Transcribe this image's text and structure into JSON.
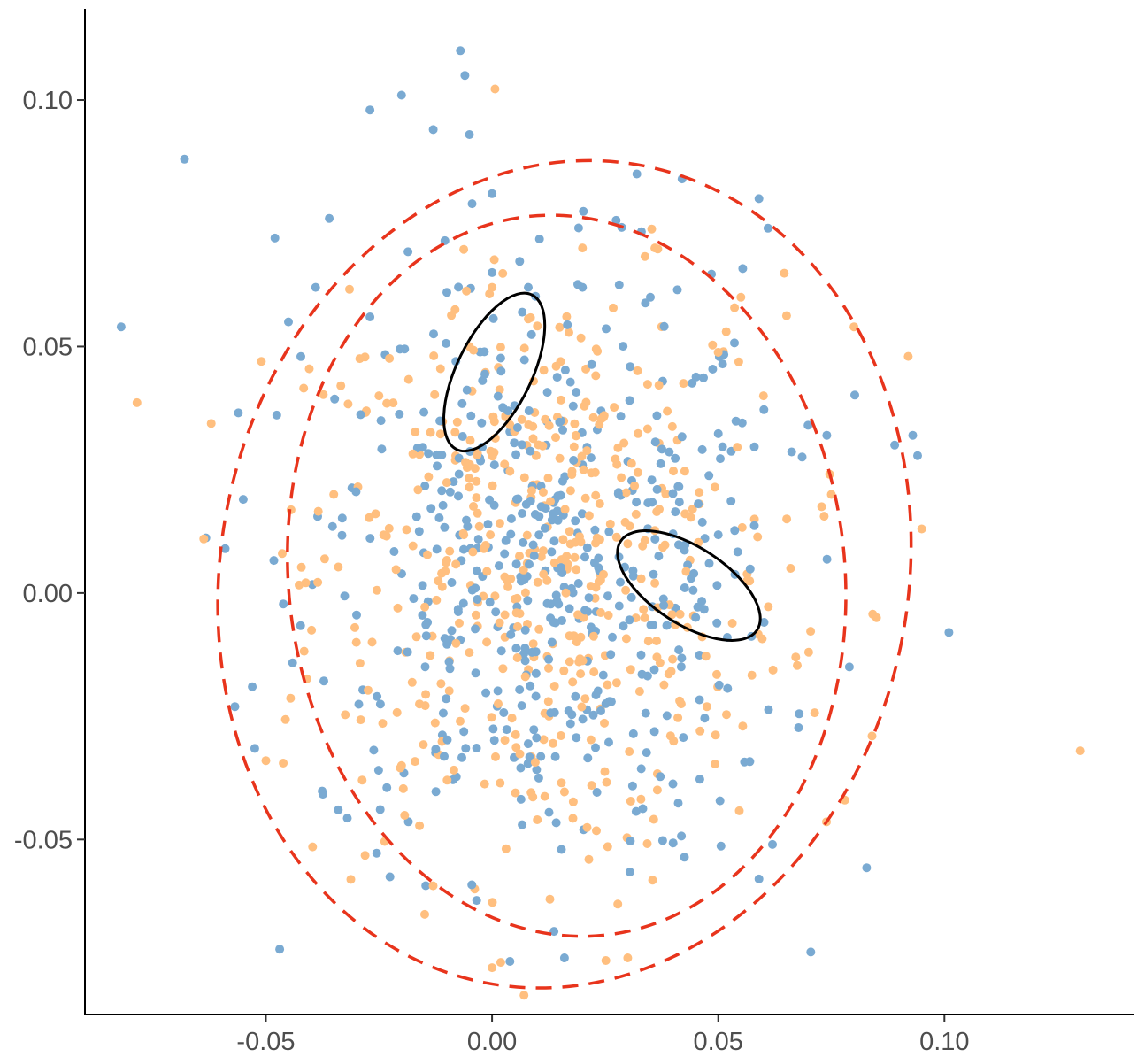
{
  "chart_data": {
    "type": "scatter",
    "title": "",
    "xlabel": "",
    "ylabel": "",
    "xlim": [
      -0.09,
      0.142
    ],
    "ylim": [
      -0.0855,
      0.1185
    ],
    "x_ticks": [
      -0.05,
      0.0,
      0.05,
      0.1
    ],
    "x_tick_labels": [
      "-0.05",
      "0.00",
      "0.05",
      "0.10"
    ],
    "y_ticks": [
      -0.05,
      0.0,
      0.05,
      0.1
    ],
    "y_tick_labels": [
      "-0.05",
      "0.00",
      "0.05",
      "0.10"
    ],
    "grid": false,
    "legend": "none",
    "colors": {
      "series_blue": "#7aaad2",
      "series_orange": "#ffbf7f",
      "dashed_ellipse": "#e8341c",
      "solid_ellipse": "#000000"
    },
    "generated_cloud": {
      "center": [
        0.012,
        0.004
      ],
      "sd": [
        0.026,
        0.03
      ],
      "count_per_series": 490
    },
    "series": [
      {
        "color": "#7aaad2",
        "points": [
          [
            -0.007,
            0.11
          ],
          [
            -0.006,
            0.105
          ],
          [
            -0.02,
            0.101
          ],
          [
            -0.027,
            0.098
          ],
          [
            -0.013,
            0.094
          ],
          [
            -0.005,
            0.093
          ],
          [
            -0.068,
            0.088
          ],
          [
            -0.082,
            0.054
          ],
          [
            0.032,
            0.085
          ],
          [
            0.042,
            0.084
          ],
          [
            0.059,
            0.08
          ],
          [
            0.061,
            0.074
          ],
          [
            0.0,
            0.081
          ],
          [
            -0.036,
            0.076
          ],
          [
            -0.048,
            0.072
          ],
          [
            -0.039,
            0.062
          ],
          [
            -0.045,
            0.055
          ],
          [
            0.093,
            0.032
          ],
          [
            0.101,
            -0.008
          ],
          [
            -0.059,
            0.009
          ],
          [
            -0.055,
            0.019
          ],
          [
            -0.053,
            -0.019
          ],
          [
            -0.034,
            -0.044
          ],
          [
            0.016,
            -0.074
          ],
          [
            0.059,
            -0.058
          ],
          [
            0.062,
            -0.051
          ],
          [
            0.079,
            -0.015
          ],
          [
            0.089,
            0.03
          ],
          [
            0.074,
            0.032
          ],
          [
            -0.027,
            0.056
          ],
          [
            -0.01,
            0.061
          ],
          [
            0.0,
            0.065
          ],
          [
            0.008,
            0.062
          ],
          [
            0.02,
            0.062
          ],
          [
            0.035,
            0.06
          ],
          [
            -0.008,
            0.047
          ],
          [
            0.002,
            0.045
          ],
          [
            0.005,
            0.038
          ],
          [
            0.012,
            0.03
          ],
          [
            0.02,
            0.026
          ],
          [
            0.04,
            0.012
          ],
          [
            0.048,
            0.006
          ],
          [
            0.052,
            -0.009
          ],
          [
            0.044,
            0.003
          ]
        ]
      },
      {
        "color": "#ffbf7f",
        "points": [
          [
            0.13,
            -0.032
          ],
          [
            0.092,
            0.048
          ],
          [
            0.095,
            0.013
          ],
          [
            0.078,
            -0.042
          ],
          [
            0.0,
            -0.076
          ],
          [
            0.03,
            -0.074
          ],
          [
            -0.051,
            0.047
          ],
          [
            -0.05,
            -0.034
          ],
          [
            0.036,
            0.07
          ],
          [
            0.055,
            0.06
          ],
          [
            0.08,
            0.054
          ],
          [
            0.084,
            -0.029
          ],
          [
            -0.005,
            0.05
          ],
          [
            0.003,
            0.036
          ],
          [
            0.01,
            0.022
          ],
          [
            0.03,
            0.01
          ],
          [
            0.036,
            0.002
          ],
          [
            0.058,
            0.015
          ],
          [
            0.066,
            0.005
          ],
          [
            0.07,
            -0.012
          ],
          [
            0.046,
            -0.028
          ],
          [
            0.022,
            -0.039
          ],
          [
            0.01,
            -0.046
          ],
          [
            -0.02,
            -0.035
          ],
          [
            -0.03,
            -0.01
          ],
          [
            -0.035,
            0.02
          ],
          [
            -0.025,
            0.04
          ],
          [
            0.0,
            0.062
          ],
          [
            0.02,
            0.07
          ],
          [
            0.06,
            0.04
          ],
          [
            0.075,
            0.02
          ],
          [
            0.085,
            -0.005
          ]
        ]
      }
    ],
    "ellipses": [
      {
        "style": "dashed",
        "color": "#e8341c",
        "cx": 0.0165,
        "cy": 0.0035,
        "rx": 0.0615,
        "ry": 0.0733,
        "angle_deg": 6
      },
      {
        "style": "dashed",
        "color": "#e8341c",
        "cx": 0.016,
        "cy": 0.0038,
        "rx": 0.076,
        "ry": 0.0844,
        "angle_deg": -11
      },
      {
        "style": "solid",
        "color": "#000000",
        "cx": 0.0005,
        "cy": 0.0448,
        "rx": 0.019,
        "ry": 0.0076,
        "angle_deg": 64
      },
      {
        "style": "solid",
        "color": "#000000",
        "cx": 0.0435,
        "cy": 0.0015,
        "rx": 0.018,
        "ry": 0.0078,
        "angle_deg": -33
      }
    ]
  }
}
